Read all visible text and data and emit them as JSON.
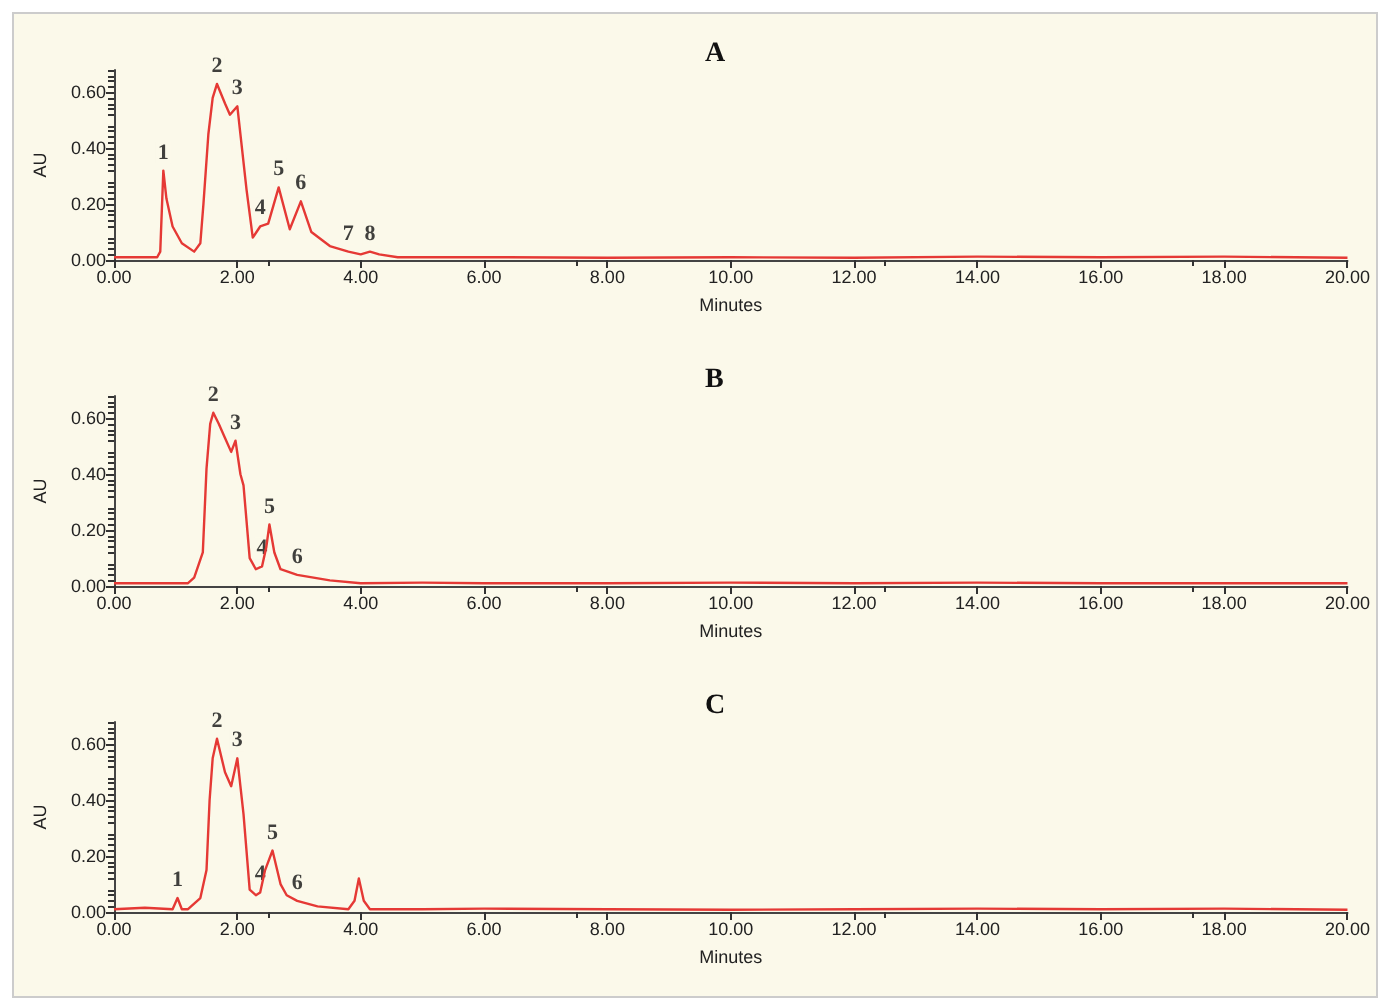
{
  "chart_data": [
    {
      "type": "line",
      "title": "A",
      "xlabel": "Minutes",
      "ylabel": "AU",
      "xlim": [
        0,
        20
      ],
      "ylim": [
        0,
        0.68
      ],
      "xticks": [
        {
          "value": 0,
          "label": "0.00"
        },
        {
          "value": 2,
          "label": "2.00"
        },
        {
          "value": 4,
          "label": "4.00"
        },
        {
          "value": 6,
          "label": "6.00"
        },
        {
          "value": 8,
          "label": "8.00"
        },
        {
          "value": 10,
          "label": "10.00"
        },
        {
          "value": 12,
          "label": "12.00"
        },
        {
          "value": 14,
          "label": "14.00"
        },
        {
          "value": 16,
          "label": "16.00"
        },
        {
          "value": 18,
          "label": "18.00"
        },
        {
          "value": 20,
          "label": "20.00"
        }
      ],
      "yticks": [
        {
          "value": 0,
          "label": "0.00"
        },
        {
          "value": 0.2,
          "label": "0.20"
        },
        {
          "value": 0.4,
          "label": "0.40"
        },
        {
          "value": 0.6,
          "label": "0.60"
        }
      ],
      "series": [
        {
          "color": "#e53935",
          "x": [
            0,
            0.4,
            0.7,
            0.75,
            0.8,
            0.85,
            0.95,
            1.1,
            1.3,
            1.4,
            1.45,
            1.53,
            1.6,
            1.67,
            1.8,
            1.88,
            2.0,
            2.05,
            2.15,
            2.25,
            2.37,
            2.5,
            2.67,
            2.85,
            3.03,
            3.2,
            3.5,
            3.8,
            4.0,
            4.15,
            4.3,
            4.6,
            5,
            6,
            8,
            10,
            12,
            14,
            16,
            18,
            20
          ],
          "values": [
            0.01,
            0.01,
            0.01,
            0.03,
            0.32,
            0.22,
            0.12,
            0.06,
            0.03,
            0.06,
            0.2,
            0.45,
            0.58,
            0.63,
            0.56,
            0.52,
            0.55,
            0.45,
            0.25,
            0.08,
            0.12,
            0.13,
            0.26,
            0.11,
            0.21,
            0.1,
            0.05,
            0.03,
            0.02,
            0.03,
            0.02,
            0.01,
            0.01,
            0.01,
            0.008,
            0.01,
            0.008,
            0.012,
            0.01,
            0.012,
            0.008
          ]
        }
      ],
      "annotations": [
        {
          "text": "1",
          "x": 0.8,
          "y": 0.32
        },
        {
          "text": "2",
          "x": 1.67,
          "y": 0.63
        },
        {
          "text": "3",
          "x": 2.0,
          "y": 0.55
        },
        {
          "text": "4",
          "x": 2.37,
          "y": 0.12
        },
        {
          "text": "5",
          "x": 2.67,
          "y": 0.26
        },
        {
          "text": "6",
          "x": 3.03,
          "y": 0.21
        },
        {
          "text": "7",
          "x": 3.8,
          "y": 0.03
        },
        {
          "text": "8",
          "x": 4.15,
          "y": 0.03
        }
      ]
    },
    {
      "type": "line",
      "title": "B",
      "xlabel": "Minutes",
      "ylabel": "AU",
      "xlim": [
        0,
        20
      ],
      "ylim": [
        0,
        0.68
      ],
      "xticks": [
        {
          "value": 0,
          "label": "0.00"
        },
        {
          "value": 2,
          "label": "2.00"
        },
        {
          "value": 4,
          "label": "4.00"
        },
        {
          "value": 6,
          "label": "6.00"
        },
        {
          "value": 8,
          "label": "8.00"
        },
        {
          "value": 10,
          "label": "10.00"
        },
        {
          "value": 12,
          "label": "12.00"
        },
        {
          "value": 14,
          "label": "14.00"
        },
        {
          "value": 16,
          "label": "16.00"
        },
        {
          "value": 18,
          "label": "18.00"
        },
        {
          "value": 20,
          "label": "20.00"
        }
      ],
      "yticks": [
        {
          "value": 0,
          "label": "0.00"
        },
        {
          "value": 0.2,
          "label": "0.20"
        },
        {
          "value": 0.4,
          "label": "0.40"
        },
        {
          "value": 0.6,
          "label": "0.60"
        }
      ],
      "series": [
        {
          "color": "#e53935",
          "x": [
            0,
            0.6,
            1.2,
            1.3,
            1.44,
            1.5,
            1.56,
            1.61,
            1.7,
            1.8,
            1.9,
            1.97,
            2.05,
            2.1,
            2.2,
            2.3,
            2.4,
            2.47,
            2.52,
            2.6,
            2.7,
            2.97,
            3.5,
            4,
            5,
            6,
            8,
            10,
            12,
            14,
            16,
            18,
            20
          ],
          "values": [
            0.01,
            0.01,
            0.01,
            0.03,
            0.12,
            0.42,
            0.58,
            0.62,
            0.58,
            0.53,
            0.48,
            0.52,
            0.4,
            0.36,
            0.1,
            0.06,
            0.07,
            0.14,
            0.22,
            0.12,
            0.06,
            0.04,
            0.02,
            0.01,
            0.012,
            0.01,
            0.01,
            0.012,
            0.01,
            0.012,
            0.01,
            0.01,
            0.01
          ]
        }
      ],
      "annotations": [
        {
          "text": "2",
          "x": 1.61,
          "y": 0.62
        },
        {
          "text": "3",
          "x": 1.97,
          "y": 0.52
        },
        {
          "text": "4",
          "x": 2.4,
          "y": 0.07
        },
        {
          "text": "5",
          "x": 2.52,
          "y": 0.22
        },
        {
          "text": "6",
          "x": 2.97,
          "y": 0.04
        }
      ]
    },
    {
      "type": "line",
      "title": "C",
      "xlabel": "Minutes",
      "ylabel": "AU",
      "xlim": [
        0,
        20
      ],
      "ylim": [
        0,
        0.68
      ],
      "xticks": [
        {
          "value": 0,
          "label": "0.00"
        },
        {
          "value": 2,
          "label": "2.00"
        },
        {
          "value": 4,
          "label": "4.00"
        },
        {
          "value": 6,
          "label": "6.00"
        },
        {
          "value": 8,
          "label": "8.00"
        },
        {
          "value": 10,
          "label": "10.00"
        },
        {
          "value": 12,
          "label": "12.00"
        },
        {
          "value": 14,
          "label": "14.00"
        },
        {
          "value": 16,
          "label": "16.00"
        },
        {
          "value": 18,
          "label": "18.00"
        },
        {
          "value": 20,
          "label": "20.00"
        }
      ],
      "yticks": [
        {
          "value": 0,
          "label": "0.00"
        },
        {
          "value": 0.2,
          "label": "0.20"
        },
        {
          "value": 0.4,
          "label": "0.40"
        },
        {
          "value": 0.6,
          "label": "0.60"
        }
      ],
      "series": [
        {
          "color": "#e53935",
          "x": [
            0,
            0.5,
            0.95,
            1.03,
            1.1,
            1.2,
            1.4,
            1.5,
            1.55,
            1.6,
            1.67,
            1.8,
            1.9,
            2.0,
            2.05,
            2.1,
            2.2,
            2.3,
            2.37,
            2.45,
            2.57,
            2.7,
            2.8,
            2.97,
            3.3,
            3.8,
            3.9,
            3.97,
            4.05,
            4.15,
            5,
            6,
            8,
            10,
            12,
            14,
            16,
            18,
            20
          ],
          "values": [
            0.01,
            0.015,
            0.01,
            0.05,
            0.01,
            0.01,
            0.05,
            0.15,
            0.4,
            0.55,
            0.62,
            0.5,
            0.45,
            0.55,
            0.45,
            0.35,
            0.08,
            0.06,
            0.07,
            0.15,
            0.22,
            0.1,
            0.06,
            0.04,
            0.02,
            0.01,
            0.04,
            0.12,
            0.04,
            0.01,
            0.01,
            0.012,
            0.01,
            0.008,
            0.01,
            0.012,
            0.01,
            0.012,
            0.008
          ]
        }
      ],
      "annotations": [
        {
          "text": "1",
          "x": 1.03,
          "y": 0.05
        },
        {
          "text": "2",
          "x": 1.67,
          "y": 0.62
        },
        {
          "text": "3",
          "x": 2.0,
          "y": 0.55
        },
        {
          "text": "4",
          "x": 2.37,
          "y": 0.07
        },
        {
          "text": "5",
          "x": 2.57,
          "y": 0.22
        },
        {
          "text": "6",
          "x": 2.97,
          "y": 0.04
        }
      ]
    }
  ]
}
